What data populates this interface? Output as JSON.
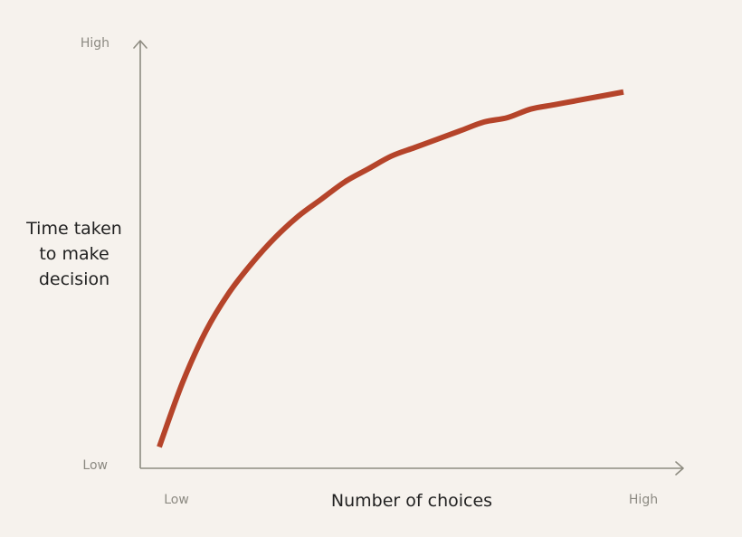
{
  "colors": {
    "background": "#f6f2ed",
    "axis": "#8e8c81",
    "curve": "#b5442a",
    "tick_text": "#8c8a82",
    "title_text": "#222222"
  },
  "chart_data": {
    "type": "line",
    "title": "",
    "xlabel": "Number of choices",
    "ylabel_lines": [
      "Time taken",
      "to make",
      "decision"
    ],
    "xticks": [
      "Low",
      "High"
    ],
    "yticks": [
      "Low",
      "High"
    ],
    "xlim": [
      0,
      1
    ],
    "ylim": [
      0,
      1
    ],
    "grid": false,
    "series": [
      {
        "x": [
          0.0,
          0.05,
          0.1,
          0.15,
          0.2,
          0.25,
          0.3,
          0.35,
          0.4,
          0.45,
          0.5,
          0.55,
          0.6,
          0.65,
          0.7,
          0.75,
          0.8,
          0.85,
          0.9,
          0.95,
          1.0
        ],
        "y": [
          0.05,
          0.2,
          0.32,
          0.41,
          0.48,
          0.54,
          0.59,
          0.63,
          0.67,
          0.7,
          0.73,
          0.75,
          0.77,
          0.79,
          0.81,
          0.82,
          0.84,
          0.85,
          0.86,
          0.87,
          0.88
        ]
      }
    ]
  }
}
